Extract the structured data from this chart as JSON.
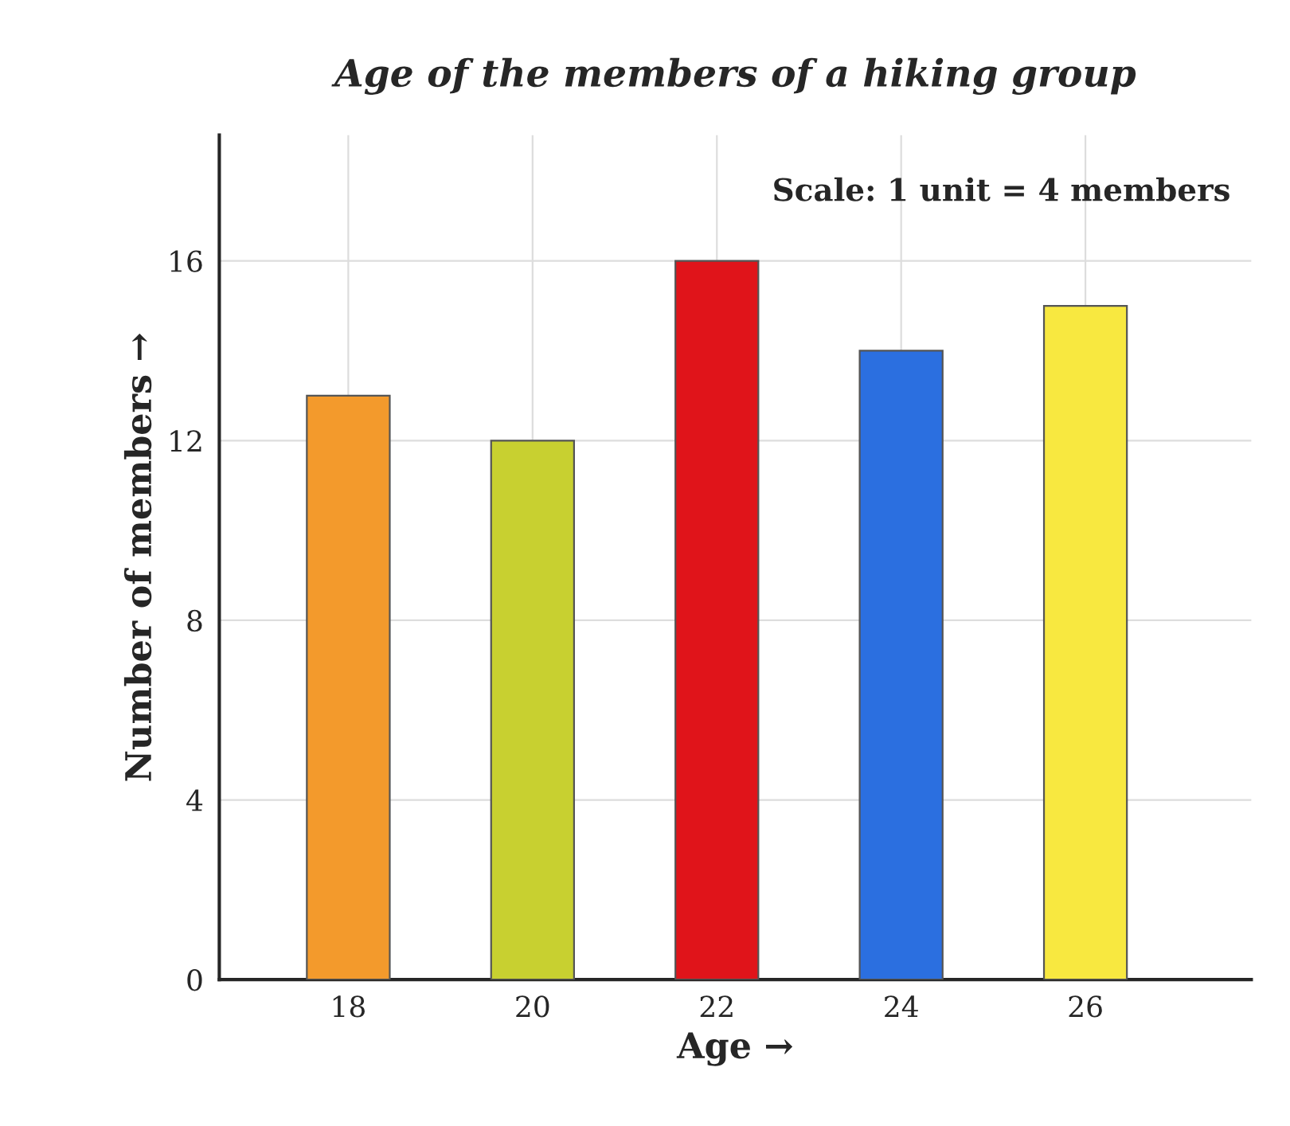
{
  "chart_data": {
    "type": "bar",
    "title": "Age of the members of a hiking group",
    "xlabel": "Age →",
    "ylabel": "Number of members →",
    "categories": [
      "18",
      "20",
      "22",
      "24",
      "26"
    ],
    "values": [
      13,
      12,
      16,
      14,
      15
    ],
    "colors": [
      "#f39a2c",
      "#c8d030",
      "#e0141a",
      "#2b6fe0",
      "#f8e840"
    ],
    "ylim": [
      0,
      18.8
    ],
    "yticks": [
      0,
      4,
      8,
      12,
      16
    ],
    "grid": true,
    "annotations": [
      "Scale: 1 unit = 4 members"
    ]
  }
}
